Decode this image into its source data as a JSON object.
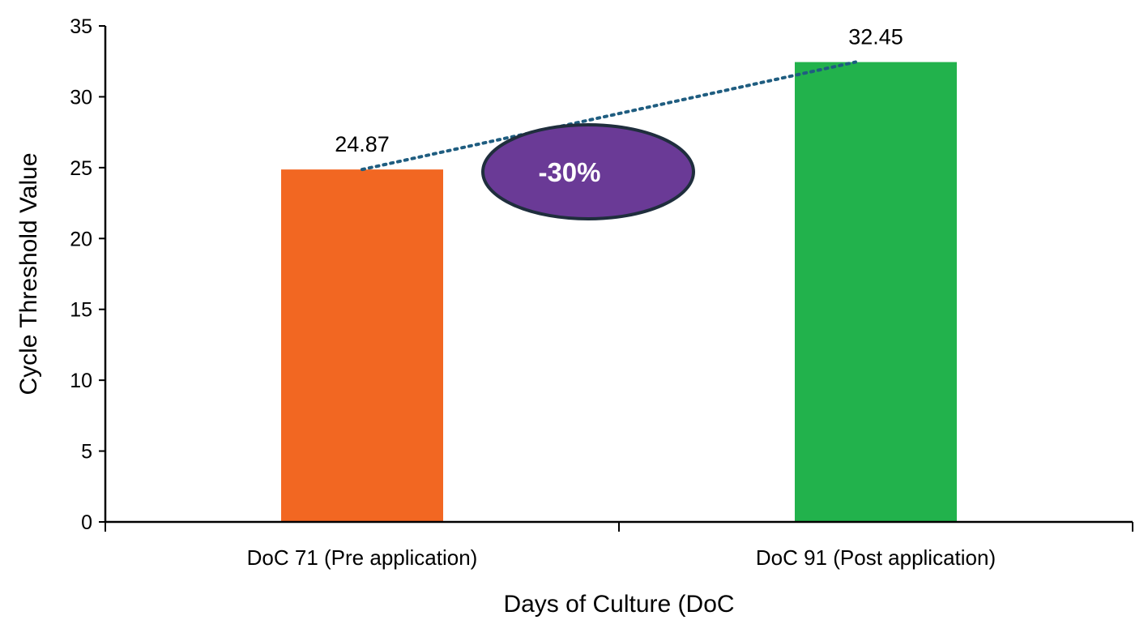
{
  "chart_data": {
    "type": "bar",
    "categories": [
      "DoC 71 (Pre application)",
      "DoC 91 (Post application)"
    ],
    "values": [
      24.87,
      32.45
    ],
    "data_labels": [
      "24.87",
      "32.45"
    ],
    "bar_colors": [
      "#F26722",
      "#22B24C"
    ],
    "xlabel": "Days of Culture (DoC",
    "ylabel": "Cycle Threshold  Value",
    "ylim": [
      0,
      35
    ],
    "yticks": [
      0,
      5,
      10,
      15,
      20,
      25,
      30,
      35
    ],
    "grid": false,
    "legend": "none",
    "annotation": {
      "text": "-30%",
      "shape": "ellipse",
      "fill_color": "#6A3A96",
      "border_color": "#1F2E3D",
      "connector": "dotted trend line between bar tops",
      "connector_color": "#1F5D80"
    }
  }
}
